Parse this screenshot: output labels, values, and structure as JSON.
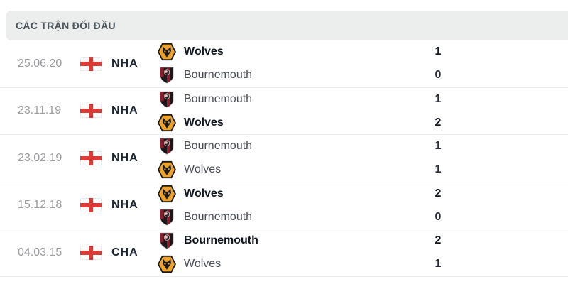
{
  "header": {
    "title": "CÁC TRẬN ĐỐI ĐẦU"
  },
  "colors": {
    "header_bg": "#eceeed",
    "flag_cross_red": "#dc3a34",
    "wolves_gold": "#eda32b",
    "bournemouth_red": "#8b1e2d",
    "winner_text": "#10161f",
    "muted_text": "#9b9ca0"
  },
  "matches": [
    {
      "date": "25.06.20",
      "league": "NHA",
      "flag": "england",
      "team1": {
        "name": "Wolves",
        "logo": "wolves",
        "score": "1",
        "bold": true
      },
      "team2": {
        "name": "Bournemouth",
        "logo": "bournemouth",
        "score": "0",
        "bold": false
      }
    },
    {
      "date": "23.11.19",
      "league": "NHA",
      "flag": "england",
      "team1": {
        "name": "Bournemouth",
        "logo": "bournemouth",
        "score": "1",
        "bold": false
      },
      "team2": {
        "name": "Wolves",
        "logo": "wolves",
        "score": "2",
        "bold": true
      }
    },
    {
      "date": "23.02.19",
      "league": "NHA",
      "flag": "england",
      "team1": {
        "name": "Bournemouth",
        "logo": "bournemouth",
        "score": "1",
        "bold": false
      },
      "team2": {
        "name": "Wolves",
        "logo": "wolves",
        "score": "1",
        "bold": false
      }
    },
    {
      "date": "15.12.18",
      "league": "NHA",
      "flag": "england",
      "team1": {
        "name": "Wolves",
        "logo": "wolves",
        "score": "2",
        "bold": true
      },
      "team2": {
        "name": "Bournemouth",
        "logo": "bournemouth",
        "score": "0",
        "bold": false
      }
    },
    {
      "date": "04.03.15",
      "league": "CHA",
      "flag": "england",
      "team1": {
        "name": "Bournemouth",
        "logo": "bournemouth",
        "score": "2",
        "bold": true
      },
      "team2": {
        "name": "Wolves",
        "logo": "wolves",
        "score": "1",
        "bold": false
      }
    }
  ]
}
